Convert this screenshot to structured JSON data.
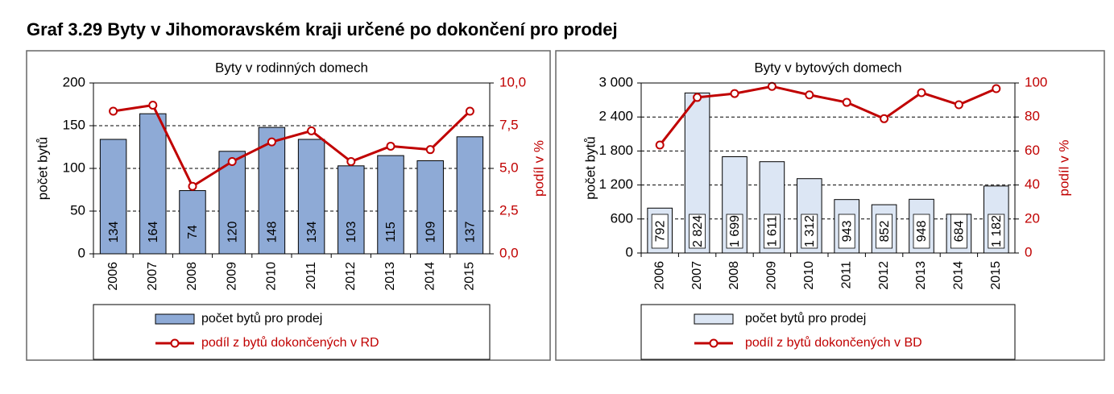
{
  "title": "Graf 3.29 Byty v Jihomoravském kraji určené po dokončení pro prodej",
  "chart_data": [
    {
      "type": "bar",
      "title": "Byty v rodinných domech",
      "categories": [
        "2006",
        "2007",
        "2008",
        "2009",
        "2010",
        "2011",
        "2012",
        "2013",
        "2014",
        "2015"
      ],
      "y_label": "počet bytů",
      "y2_label": "podíl v %",
      "ylim": [
        0,
        200
      ],
      "yticks": [
        0,
        50,
        100,
        150,
        200
      ],
      "y2lim": [
        0,
        10
      ],
      "y2ticks": [
        {
          "value": 0,
          "label": "0,0"
        },
        {
          "value": 2.5,
          "label": "2,5"
        },
        {
          "value": 5,
          "label": "5,0"
        },
        {
          "value": 7.5,
          "label": "7,5"
        },
        {
          "value": 10,
          "label": "10,0"
        }
      ],
      "grid": true,
      "series": [
        {
          "name": "počet bytů pro prodej",
          "type": "bar",
          "color": "#8eaad6",
          "values": [
            134,
            164,
            74,
            120,
            148,
            134,
            103,
            115,
            109,
            137
          ]
        },
        {
          "name": "podíl z bytů dokončených v RD",
          "type": "line",
          "axis": "y2",
          "color": "#c00000",
          "values": [
            8.35,
            8.7,
            3.95,
            5.4,
            6.55,
            7.2,
            5.4,
            6.3,
            6.1,
            8.35
          ]
        }
      ]
    },
    {
      "type": "bar",
      "title": "Byty v bytových domech",
      "categories": [
        "2006",
        "2007",
        "2008",
        "2009",
        "2010",
        "2011",
        "2012",
        "2013",
        "2014",
        "2015"
      ],
      "y_label": "počet bytů",
      "y2_label": "podíl v %",
      "ylim": [
        0,
        3000
      ],
      "yticks": [
        0,
        600,
        {
          "value": 1200,
          "label": "1 200"
        },
        {
          "value": 1800,
          "label": "1 800"
        },
        {
          "value": 2400,
          "label": "2 400"
        },
        {
          "value": 3000,
          "label": "3 000"
        }
      ],
      "y2lim": [
        0,
        100
      ],
      "y2ticks": [
        0,
        20,
        40,
        60,
        80,
        100
      ],
      "grid": true,
      "series": [
        {
          "name": "počet bytů pro prodej",
          "type": "bar",
          "color": "#dce6f4",
          "values": [
            792,
            2824,
            1699,
            1611,
            1312,
            943,
            852,
            948,
            684,
            1182
          ],
          "value_labels": [
            "792",
            "2 824",
            "1 699",
            "1 611",
            "1 312",
            "943",
            "852",
            "948",
            "684",
            "1 182"
          ]
        },
        {
          "name": "podíl z bytů dokončených v BD",
          "type": "line",
          "axis": "y2",
          "color": "#c00000",
          "values": [
            63.5,
            91.5,
            93.8,
            98,
            93,
            88.6,
            79,
            94.3,
            87.2,
            96.7
          ]
        }
      ]
    }
  ]
}
